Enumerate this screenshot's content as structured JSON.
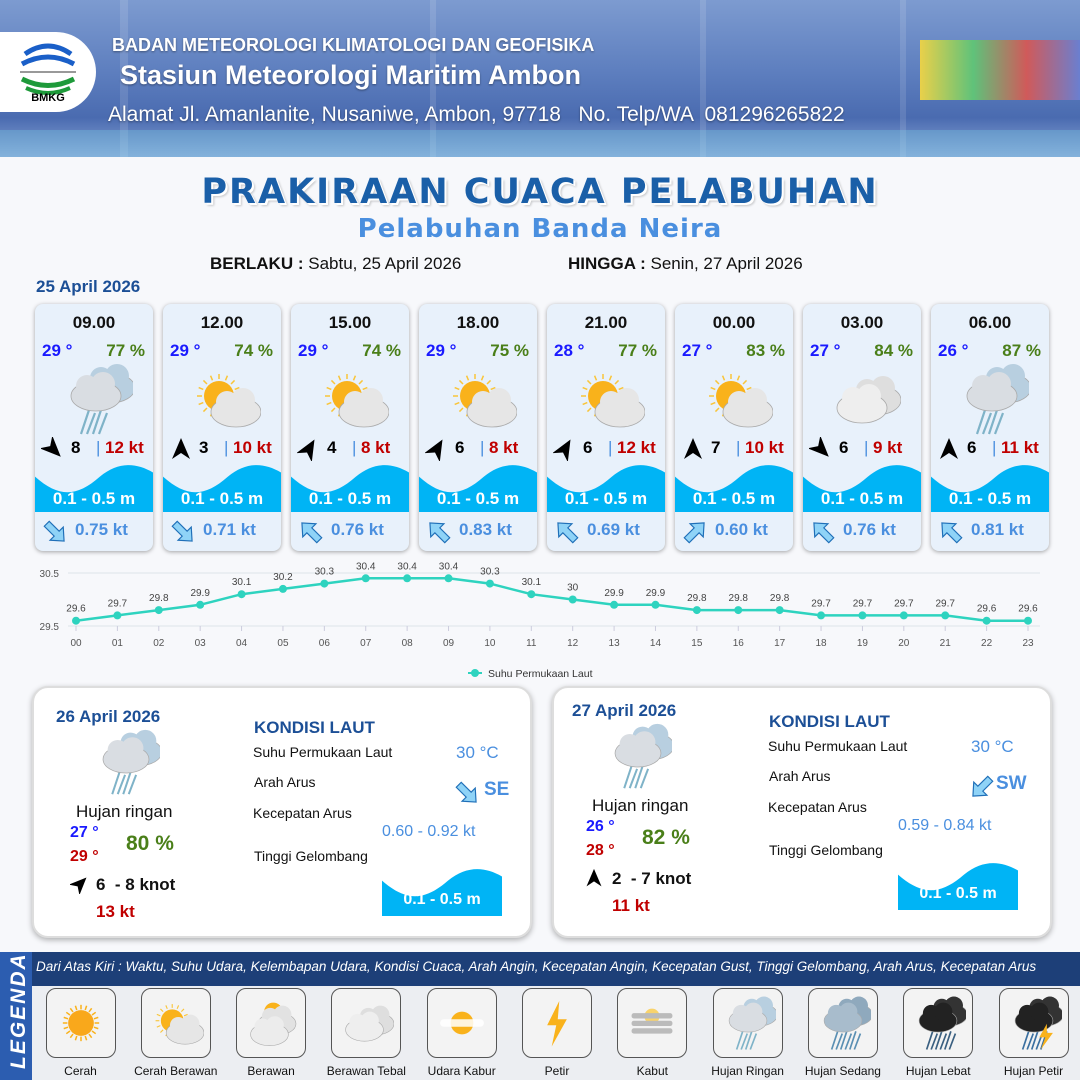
{
  "header": {
    "agency": "BADAN METEOROLOGI KLIMATOLOGI DAN GEOFISIKA",
    "station": "Stasiun Meteorologi Maritim Ambon",
    "address": "Alamat Jl. Amanlanite, Nusaniwe, Ambon, 97718   No. Telp/WA  081296265822",
    "logo_text": "BMKG"
  },
  "title": "PRAKIRAAN CUACA PELABUHAN",
  "subtitle": "Pelabuhan Banda Neira",
  "validity": {
    "from_label": "BERLAKU :",
    "from_value": "Sabtu, 25 April 2026",
    "to_label": "HINGGA :",
    "to_value": "Senin, 27 April 2026"
  },
  "day1": {
    "date": "25 April 2026",
    "forecasts": [
      {
        "time": "09.00",
        "temp": "29 °",
        "humidity": "77 %",
        "icon": "hujan-ringan",
        "wind_dir_deg": 45,
        "wind_speed": "8",
        "gust": "12 kt",
        "wave": "0.1 - 0.5 m",
        "current_dir_deg": 135,
        "current_speed": "0.75 kt"
      },
      {
        "time": "12.00",
        "temp": "29 °",
        "humidity": "74 %",
        "icon": "cerah-berawan",
        "wind_dir_deg": 270,
        "wind_speed": "3",
        "gust": "10 kt",
        "wave": "0.1 - 0.5 m",
        "current_dir_deg": 135,
        "current_speed": "0.71 kt"
      },
      {
        "time": "15.00",
        "temp": "29 °",
        "humidity": "74 %",
        "icon": "cerah-berawan",
        "wind_dir_deg": 300,
        "wind_speed": "4",
        "gust": "8 kt",
        "wave": "0.1 - 0.5 m",
        "current_dir_deg": 315,
        "current_speed": "0.76 kt"
      },
      {
        "time": "18.00",
        "temp": "29 °",
        "humidity": "75 %",
        "icon": "cerah-berawan",
        "wind_dir_deg": 300,
        "wind_speed": "6",
        "gust": "8 kt",
        "wave": "0.1 - 0.5 m",
        "current_dir_deg": 315,
        "current_speed": "0.83 kt"
      },
      {
        "time": "21.00",
        "temp": "28 °",
        "humidity": "77 %",
        "icon": "cerah-berawan",
        "wind_dir_deg": 300,
        "wind_speed": "6",
        "gust": "12 kt",
        "wave": "0.1 - 0.5 m",
        "current_dir_deg": 315,
        "current_speed": "0.69 kt"
      },
      {
        "time": "00.00",
        "temp": "27 °",
        "humidity": "83 %",
        "icon": "cerah-berawan",
        "wind_dir_deg": 270,
        "wind_speed": "7",
        "gust": "10 kt",
        "wave": "0.1 - 0.5 m",
        "current_dir_deg": 45,
        "current_speed": "0.60 kt"
      },
      {
        "time": "03.00",
        "temp": "27 °",
        "humidity": "84 %",
        "icon": "berawan-tebal",
        "wind_dir_deg": 45,
        "wind_speed": "6",
        "gust": "9 kt",
        "wave": "0.1 - 0.5 m",
        "current_dir_deg": 315,
        "current_speed": "0.76 kt"
      },
      {
        "time": "06.00",
        "temp": "26 °",
        "humidity": "87 %",
        "icon": "hujan-ringan",
        "wind_dir_deg": 270,
        "wind_speed": "6",
        "gust": "11 kt",
        "wave": "0.1 - 0.5 m",
        "current_dir_deg": 315,
        "current_speed": "0.81 kt"
      }
    ]
  },
  "chart_data": {
    "type": "line",
    "categories": [
      "00",
      "01",
      "02",
      "03",
      "04",
      "05",
      "06",
      "07",
      "08",
      "09",
      "10",
      "11",
      "12",
      "13",
      "14",
      "15",
      "16",
      "17",
      "18",
      "19",
      "20",
      "21",
      "22",
      "23"
    ],
    "series": [
      {
        "name": "Suhu Permukaan Laut",
        "values": [
          29.6,
          29.7,
          29.8,
          29.9,
          30.1,
          30.2,
          30.3,
          30.4,
          30.4,
          30.4,
          30.3,
          30.1,
          30.0,
          29.9,
          29.9,
          29.8,
          29.8,
          29.8,
          29.7,
          29.7,
          29.7,
          29.7,
          29.6,
          29.6
        ],
        "color": "#2ed3bf"
      }
    ],
    "yticks": [
      "30.5",
      "29.5"
    ],
    "ylim": [
      29.5,
      30.5
    ],
    "grid": true,
    "legend": "bottom"
  },
  "days": [
    {
      "date": "26 April 2026",
      "icon": "hujan-ringan",
      "condition": "Hujan ringan",
      "temp_min": "27 °",
      "temp_max": "29 °",
      "humidity": "80 %",
      "wind_dir_deg": 315,
      "wind": "6  - 8 knot",
      "gust": "13 kt",
      "sea": {
        "heading": "KONDISI LAUT",
        "sst_label": "Suhu Permukaan Laut",
        "sst": "30 °C",
        "dir_label": "Arah Arus",
        "dir": "SE",
        "dir_deg": 135,
        "speed_label": "Kecepatan Arus",
        "speed": "0.60 - 0.92 kt",
        "wave_label": "Tinggi Gelombang",
        "wave": "0.1 - 0.5 m"
      }
    },
    {
      "date": "27 April 2026",
      "icon": "hujan-ringan",
      "condition": "Hujan ringan",
      "temp_min": "26 °",
      "temp_max": "28 °",
      "humidity": "82 %",
      "wind_dir_deg": 270,
      "wind": "2  - 7 knot",
      "gust": "11 kt",
      "sea": {
        "heading": "KONDISI LAUT",
        "sst_label": "Suhu Permukaan Laut",
        "sst": "30 °C",
        "dir_label": "Arah Arus",
        "dir": "SW",
        "dir_deg": 225,
        "speed_label": "Kecepatan Arus",
        "speed": "0.59 - 0.84 kt",
        "wave_label": "Tinggi Gelombang",
        "wave": "0.1 - 0.5 m"
      }
    }
  ],
  "legend": {
    "title": "LEGENDA",
    "description": "Dari Atas Kiri : Waktu, Suhu Udara, Kelembapan Udara, Kondisi Cuaca, Arah Angin, Kecepatan Angin, Kecepatan Gust, Tinggi Gelombang, Arah Arus, Kecepatan Arus",
    "items": [
      {
        "label": "Cerah",
        "icon": "cerah"
      },
      {
        "label": "Cerah Berawan",
        "icon": "cerah-berawan"
      },
      {
        "label": "Berawan",
        "icon": "berawan"
      },
      {
        "label": "Berawan Tebal",
        "icon": "berawan-tebal"
      },
      {
        "label": "Udara Kabur",
        "icon": "udara-kabur"
      },
      {
        "label": "Petir",
        "icon": "petir"
      },
      {
        "label": "Kabut",
        "icon": "kabut"
      },
      {
        "label": "Hujan Ringan",
        "icon": "hujan-ringan"
      },
      {
        "label": "Hujan Sedang",
        "icon": "hujan-sedang"
      },
      {
        "label": "Hujan Lebat",
        "icon": "hujan-lebat"
      },
      {
        "label": "Hujan Petir",
        "icon": "hujan-petir"
      }
    ]
  },
  "colors": {
    "temp": "#1a1aff",
    "humidity": "#4a7f19",
    "gust": "#c00000",
    "wave": "#00b4f5",
    "current": "#4a8fdf",
    "heading": "#1c4f96"
  }
}
